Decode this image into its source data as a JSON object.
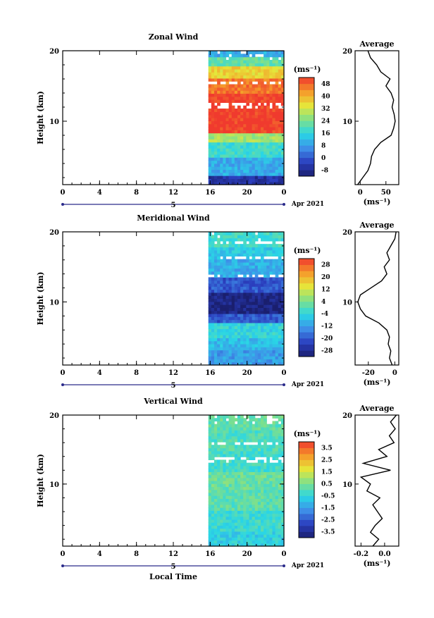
{
  "figure": {
    "x_axis_label": "Local Time",
    "x_ticks": [
      "0",
      "4",
      "8",
      "12",
      "16",
      "20",
      "0"
    ],
    "day_marker": "5",
    "date_label": "Apr 2021",
    "y_axis_label": "Height (km)",
    "y_ticks": [
      "10",
      "20"
    ],
    "unit_label": "(ms⁻¹)"
  },
  "chart_data": [
    {
      "type": "heatmap",
      "title": "Zonal Wind",
      "xlabel": "",
      "ylabel": "Height (km)",
      "xlim_hours": [
        0,
        24
      ],
      "ylim_km": [
        1,
        20
      ],
      "data_start_hour": 15.8,
      "colorbar_labels": [
        "48",
        "40",
        "32",
        "24",
        "16",
        "8",
        "0",
        "-8"
      ],
      "colorbar_range": [
        -12,
        52
      ],
      "profile_bands_km": [
        {
          "from": 1,
          "to": 2.5,
          "value": -6
        },
        {
          "from": 2.5,
          "to": 5,
          "value": 10
        },
        {
          "from": 5,
          "to": 7,
          "value": 18
        },
        {
          "from": 7,
          "to": 8.5,
          "value": 28
        },
        {
          "from": 8.5,
          "to": 14,
          "value": 52
        },
        {
          "from": 14,
          "to": 16,
          "value": 46
        },
        {
          "from": 16,
          "to": 18,
          "value": 36
        },
        {
          "from": 18,
          "to": 19,
          "value": 22
        },
        {
          "from": 19,
          "to": 20,
          "value": 10
        }
      ],
      "gap_bands_km": [
        12.2,
        15.5
      ],
      "average_profile": {
        "title": "Average",
        "x_ticks": [
          "0",
          "50"
        ],
        "xlim": [
          -10,
          75
        ],
        "heights_km": [
          1,
          2,
          3,
          4,
          5,
          6,
          7,
          8,
          9,
          10,
          11,
          12,
          13,
          14,
          15,
          16,
          17,
          18,
          19,
          20
        ],
        "values": [
          -5,
          5,
          15,
          20,
          22,
          28,
          40,
          60,
          65,
          68,
          66,
          62,
          65,
          60,
          50,
          58,
          40,
          32,
          20,
          15
        ]
      }
    },
    {
      "type": "heatmap",
      "title": "Meridional Wind",
      "xlabel": "",
      "ylabel": "Height (km)",
      "xlim_hours": [
        0,
        24
      ],
      "ylim_km": [
        1,
        20
      ],
      "data_start_hour": 15.8,
      "colorbar_labels": [
        "28",
        "20",
        "12",
        "4",
        "-4",
        "-12",
        "-20",
        "-28"
      ],
      "colorbar_range": [
        -32,
        32
      ],
      "profile_bands_km": [
        {
          "from": 1,
          "to": 3,
          "value": -12
        },
        {
          "from": 3,
          "to": 5,
          "value": -8
        },
        {
          "from": 5,
          "to": 7,
          "value": -4
        },
        {
          "from": 7,
          "to": 8.5,
          "value": -20
        },
        {
          "from": 8.5,
          "to": 11.5,
          "value": -30
        },
        {
          "from": 11.5,
          "to": 13.5,
          "value": -20
        },
        {
          "from": 13.5,
          "to": 16,
          "value": -10
        },
        {
          "from": 16,
          "to": 18,
          "value": -6
        },
        {
          "from": 18,
          "to": 20,
          "value": -2
        }
      ],
      "gap_bands_km": [
        13.7,
        16.5,
        18.6
      ],
      "average_profile": {
        "title": "Average",
        "x_ticks": [
          "-20",
          "0"
        ],
        "xlim": [
          -30,
          3
        ],
        "heights_km": [
          1,
          2,
          3,
          4,
          5,
          6,
          7,
          8,
          9,
          10,
          11,
          12,
          13,
          14,
          15,
          16,
          17,
          18,
          19,
          20
        ],
        "values": [
          -2,
          -4,
          -3,
          -5,
          -4,
          -6,
          -12,
          -22,
          -26,
          -28,
          -26,
          -18,
          -10,
          -6,
          -8,
          -4,
          -6,
          -3,
          0,
          1
        ]
      }
    },
    {
      "type": "heatmap",
      "title": "Vertical Wind",
      "xlabel": "Local Time",
      "ylabel": "Height (km)",
      "xlim_hours": [
        0,
        24
      ],
      "ylim_km": [
        1,
        20
      ],
      "data_start_hour": 15.8,
      "colorbar_labels": [
        "3.5",
        "2.5",
        "1.5",
        "0.5",
        "-0.5",
        "-1.5",
        "-2.5",
        "-3.5"
      ],
      "colorbar_range": [
        -4,
        4
      ],
      "profile_bands_km": [
        {
          "from": 1,
          "to": 3,
          "value": -0.6
        },
        {
          "from": 3,
          "to": 6,
          "value": -0.3
        },
        {
          "from": 6,
          "to": 9,
          "value": 0.1
        },
        {
          "from": 9,
          "to": 12,
          "value": 0.3
        },
        {
          "from": 12,
          "to": 15,
          "value": -0.2
        },
        {
          "from": 15,
          "to": 18,
          "value": 0.0
        },
        {
          "from": 18,
          "to": 20,
          "value": 0.2
        }
      ],
      "gap_bands_km": [
        13.5,
        15.8
      ],
      "average_profile": {
        "title": "Average",
        "x_ticks": [
          "-0.2",
          "0.0"
        ],
        "xlim": [
          -0.25,
          0.12
        ],
        "heights_km": [
          1,
          2,
          3,
          4,
          5,
          6,
          7,
          8,
          9,
          10,
          11,
          12,
          13,
          14,
          15,
          16,
          17,
          18,
          19,
          20
        ],
        "values": [
          -0.1,
          -0.05,
          -0.12,
          -0.08,
          -0.02,
          -0.06,
          -0.1,
          -0.04,
          -0.15,
          -0.12,
          -0.2,
          0.05,
          -0.18,
          0.02,
          -0.05,
          0.08,
          0.04,
          0.09,
          0.05,
          0.1
        ]
      }
    }
  ]
}
